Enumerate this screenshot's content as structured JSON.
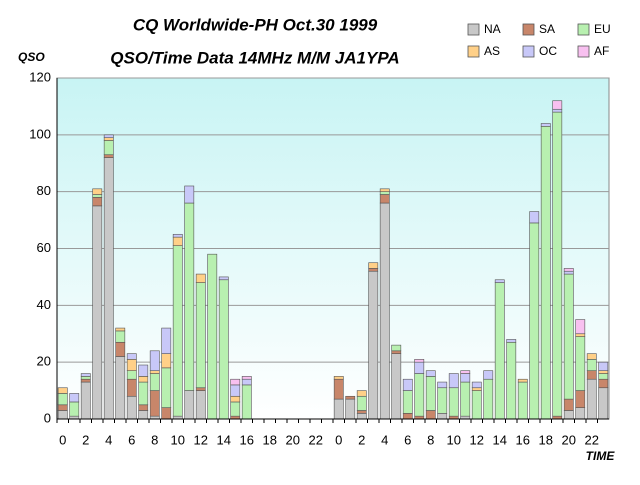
{
  "chart_data": {
    "type": "stacked_bar",
    "title": "CQ Worldwide-PH Oct.30 1999",
    "subtitle": "QSO/Time Data 14MHz M/M JA1YPA",
    "y_label": "QSO",
    "x_label": "TIME",
    "categories": [
      "0",
      null,
      "2",
      null,
      "4",
      null,
      "6",
      null,
      "8",
      null,
      "10",
      null,
      "12",
      null,
      "14",
      null,
      "16",
      null,
      "18",
      null,
      "20",
      null,
      "22",
      null,
      "0",
      null,
      "2",
      null,
      "4",
      null,
      "6",
      null,
      "8",
      null,
      "10",
      null,
      "12",
      null,
      "14",
      null,
      "16",
      null,
      "18",
      null,
      "20",
      null,
      "22",
      null
    ],
    "series": [
      {
        "name": "NA",
        "color": "#c8c8c8",
        "values": [
          3,
          1,
          13,
          75,
          92,
          22,
          8,
          3,
          1,
          0,
          1,
          10,
          10,
          0,
          0,
          0,
          0,
          0,
          0,
          0,
          0,
          0,
          0,
          0,
          7,
          7,
          2,
          52,
          76,
          23,
          0,
          0,
          0,
          2,
          0,
          1,
          0,
          0,
          0,
          0,
          0,
          0,
          0,
          0,
          3,
          4,
          14,
          11
        ]
      },
      {
        "name": "SA",
        "color": "#c8866a",
        "values": [
          2,
          0,
          1,
          3,
          1,
          5,
          6,
          2,
          9,
          4,
          0,
          0,
          1,
          0,
          0,
          1,
          0,
          0,
          0,
          0,
          0,
          0,
          0,
          0,
          7,
          1,
          1,
          1,
          3,
          1,
          2,
          1,
          3,
          0,
          1,
          0,
          0,
          0,
          0,
          0,
          0,
          0,
          0,
          1,
          4,
          6,
          3,
          3
        ]
      },
      {
        "name": "EU",
        "color": "#b8f0b0",
        "values": [
          4,
          5,
          1,
          1,
          5,
          4,
          3,
          8,
          6,
          14,
          60,
          66,
          37,
          58,
          49,
          5,
          12,
          0,
          0,
          0,
          0,
          0,
          0,
          0,
          0,
          0,
          5,
          0,
          1,
          2,
          8,
          15,
          12,
          9,
          10,
          12,
          10,
          14,
          48,
          27,
          13,
          69,
          103,
          107,
          44,
          19,
          4,
          2
        ]
      },
      {
        "name": "AS",
        "color": "#ffd088",
        "values": [
          2,
          0,
          0,
          2,
          1,
          1,
          4,
          2,
          1,
          5,
          3,
          0,
          3,
          0,
          0,
          2,
          0,
          0,
          0,
          0,
          0,
          0,
          0,
          0,
          1,
          0,
          2,
          2,
          1,
          0,
          0,
          0,
          0,
          0,
          0,
          0,
          1,
          0,
          0,
          0,
          1,
          0,
          0,
          0,
          0,
          1,
          2,
          1
        ]
      },
      {
        "name": "OC",
        "color": "#c8c8f8",
        "values": [
          0,
          3,
          1,
          0,
          1,
          0,
          2,
          4,
          7,
          9,
          1,
          6,
          0,
          0,
          1,
          4,
          2,
          0,
          0,
          0,
          0,
          0,
          0,
          0,
          0,
          0,
          0,
          0,
          0,
          0,
          4,
          4,
          2,
          2,
          5,
          3,
          2,
          3,
          1,
          1,
          0,
          4,
          1,
          1,
          1,
          0,
          0,
          3
        ]
      },
      {
        "name": "AF",
        "color": "#f8c0f0",
        "values": [
          0,
          0,
          0,
          0,
          0,
          0,
          0,
          0,
          0,
          0,
          0,
          0,
          0,
          0,
          0,
          2,
          1,
          0,
          0,
          0,
          0,
          0,
          0,
          0,
          0,
          0,
          0,
          0,
          0,
          0,
          0,
          1,
          0,
          0,
          0,
          1,
          0,
          0,
          0,
          0,
          0,
          0,
          0,
          3,
          1,
          5,
          0,
          0
        ]
      }
    ],
    "ylim": [
      0,
      120
    ],
    "yticks": [
      0,
      20,
      40,
      60,
      80,
      100,
      120
    ],
    "grid": true,
    "legend": "top-right"
  }
}
